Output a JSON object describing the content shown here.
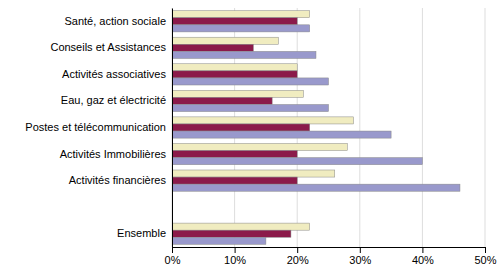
{
  "chart_data": {
    "type": "bar",
    "orientation": "horizontal",
    "grid": true,
    "categories": [
      "Ensemble",
      null,
      "Activités financières",
      "Activités Immobilières",
      "Postes et télécommunication",
      "Eau, gaz et électricité",
      "Activités associatives",
      "Conseils et Assistances",
      "Santé, action sociale"
    ],
    "series": [
      {
        "color": "#F0ECC0",
        "values": [
          0.22,
          0.0,
          0.26,
          0.28,
          0.29,
          0.21,
          0.2,
          0.17,
          0.22
        ]
      },
      {
        "color": "#8B1A4A",
        "values": [
          0.19,
          0.0,
          0.2,
          0.2,
          0.22,
          0.16,
          0.2,
          0.13,
          0.2
        ]
      },
      {
        "color": "#9999CC",
        "values": [
          0.15,
          0.0,
          0.46,
          0.4,
          0.35,
          0.25,
          0.25,
          0.23,
          0.22
        ]
      }
    ],
    "xlim": [
      0,
      0.5
    ],
    "xticks": [
      {
        "value": 0.0,
        "label": "0%"
      },
      {
        "value": 0.1,
        "label": "10%"
      },
      {
        "value": 0.2,
        "label": "20%"
      },
      {
        "value": 0.3,
        "label": "30%"
      },
      {
        "value": 0.4,
        "label": "40%"
      },
      {
        "value": 0.5,
        "label": "50%"
      }
    ]
  }
}
